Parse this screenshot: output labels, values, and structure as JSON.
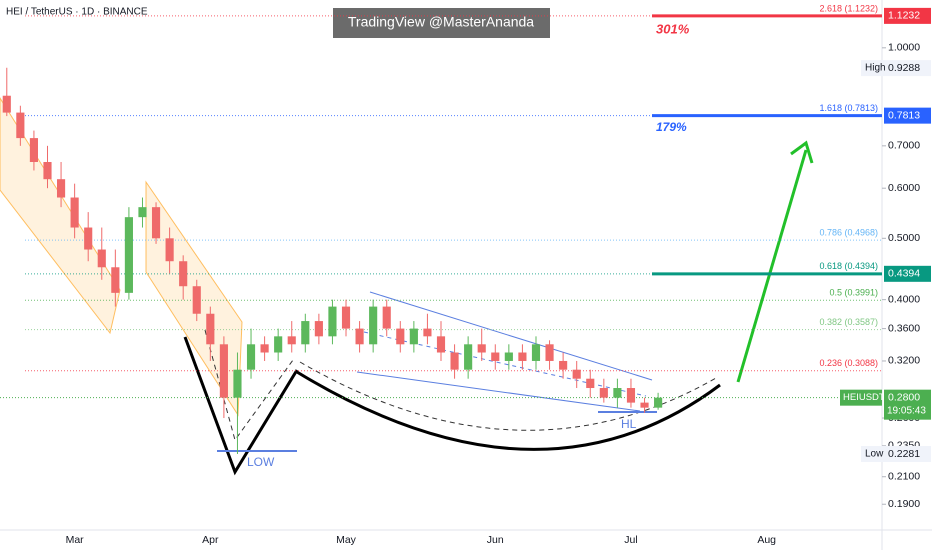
{
  "chart_data": {
    "type": "candlestick",
    "title": "HEI / TetherUS · 1D · BINANCE",
    "watermark": "TradingView @MasterAnanda",
    "log_scale": true,
    "up_color": "#5cb85c",
    "down_color": "#ef6a6a",
    "ylim": [
      0.173,
      1.19
    ],
    "yticks": [
      {
        "value": 1.0,
        "label": "1.0000"
      },
      {
        "value": 0.7,
        "label": "0.7000"
      },
      {
        "value": 0.6,
        "label": "0.6000"
      },
      {
        "value": 0.5,
        "label": "0.5000"
      },
      {
        "value": 0.4,
        "label": "0.4000"
      },
      {
        "value": 0.36,
        "label": "0.3600"
      },
      {
        "value": 0.32,
        "label": "0.3200"
      },
      {
        "value": 0.26,
        "label": "0.2600"
      },
      {
        "value": 0.235,
        "label": "0.2350"
      },
      {
        "value": 0.21,
        "label": "0.2100"
      },
      {
        "value": 0.19,
        "label": "0.1900"
      }
    ],
    "categories": [
      null,
      null,
      null,
      null,
      null,
      "Mar",
      null,
      null,
      null,
      null,
      null,
      null,
      null,
      null,
      null,
      "Apr",
      null,
      null,
      null,
      null,
      null,
      null,
      null,
      null,
      null,
      "May",
      null,
      null,
      null,
      null,
      null,
      null,
      null,
      null,
      null,
      null,
      "Jun",
      null,
      null,
      null,
      null,
      null,
      null,
      null,
      null,
      null,
      "Jul",
      null,
      null,
      null,
      null,
      null,
      null,
      null,
      null,
      null,
      "Aug",
      null,
      null,
      null,
      null,
      null,
      null,
      null,
      null
    ],
    "open": [
      0.84,
      0.79,
      0.72,
      0.66,
      0.62,
      0.58,
      0.52,
      0.48,
      0.45,
      0.41,
      0.54,
      0.56,
      0.5,
      0.46,
      0.42,
      0.38,
      0.34,
      0.28,
      0.31,
      0.34,
      0.33,
      0.35,
      0.34,
      0.37,
      0.35,
      0.39,
      0.36,
      0.34,
      0.39,
      0.36,
      0.34,
      0.36,
      0.35,
      0.33,
      0.31,
      0.34,
      0.33,
      0.32,
      0.33,
      0.32,
      0.34,
      0.32,
      0.31,
      0.3,
      0.29,
      0.28,
      0.29,
      0.275,
      0.27,
      null,
      null,
      null,
      null,
      null,
      null,
      null,
      null,
      null,
      null,
      null,
      null,
      null,
      null,
      null,
      null
    ],
    "high": [
      0.93,
      0.81,
      0.74,
      0.7,
      0.66,
      0.61,
      0.55,
      0.52,
      0.48,
      0.56,
      0.58,
      0.57,
      0.52,
      0.47,
      0.43,
      0.39,
      0.35,
      0.33,
      0.36,
      0.35,
      0.36,
      0.37,
      0.38,
      0.38,
      0.4,
      0.4,
      0.37,
      0.4,
      0.4,
      0.37,
      0.37,
      0.38,
      0.37,
      0.34,
      0.35,
      0.36,
      0.34,
      0.34,
      0.34,
      0.35,
      0.345,
      0.33,
      0.32,
      0.31,
      0.3,
      0.3,
      0.3,
      0.28,
      0.285,
      null,
      null,
      null,
      null,
      null,
      null,
      null,
      null,
      null,
      null,
      null,
      null,
      null,
      null,
      null,
      null
    ],
    "low": [
      0.78,
      0.7,
      0.64,
      0.6,
      0.56,
      0.5,
      0.46,
      0.43,
      0.39,
      0.4,
      0.52,
      0.49,
      0.44,
      0.4,
      0.37,
      0.32,
      0.26,
      0.2281,
      0.3,
      0.32,
      0.32,
      0.33,
      0.33,
      0.34,
      0.34,
      0.35,
      0.33,
      0.33,
      0.35,
      0.33,
      0.33,
      0.34,
      0.32,
      0.3,
      0.3,
      0.32,
      0.31,
      0.31,
      0.31,
      0.31,
      0.31,
      0.3,
      0.29,
      0.28,
      0.275,
      0.27,
      0.27,
      0.265,
      0.268,
      null,
      null,
      null,
      null,
      null,
      null,
      null,
      null,
      null,
      null,
      null,
      null,
      null,
      null,
      null,
      null
    ],
    "close": [
      0.79,
      0.72,
      0.66,
      0.62,
      0.58,
      0.52,
      0.48,
      0.45,
      0.41,
      0.54,
      0.56,
      0.5,
      0.46,
      0.42,
      0.38,
      0.34,
      0.28,
      0.31,
      0.34,
      0.33,
      0.35,
      0.34,
      0.37,
      0.35,
      0.39,
      0.36,
      0.34,
      0.39,
      0.36,
      0.34,
      0.36,
      0.35,
      0.33,
      0.31,
      0.34,
      0.33,
      0.32,
      0.33,
      0.32,
      0.34,
      0.32,
      0.31,
      0.3,
      0.29,
      0.28,
      0.29,
      0.275,
      0.27,
      0.28,
      null,
      null,
      null,
      null,
      null,
      null,
      null,
      null,
      null,
      null,
      null,
      null,
      null,
      null,
      null,
      null
    ],
    "fib_levels": [
      {
        "value": 1.1232,
        "label": "2.618 (1.1232)",
        "color": "#f23645"
      },
      {
        "value": 0.7813,
        "label": "1.618 (0.7813)",
        "color": "#2962ff"
      },
      {
        "value": 0.4968,
        "label": "0.786 (0.4968)",
        "color": "#64b5f6"
      },
      {
        "value": 0.4394,
        "label": "0.618 (0.4394)",
        "color": "#089981"
      },
      {
        "value": 0.3991,
        "label": "0.5 (0.3991)",
        "color": "#4caf50"
      },
      {
        "value": 0.3587,
        "label": "0.382 (0.3587)",
        "color": "#81c784"
      },
      {
        "value": 0.3088,
        "label": "0.236 (0.3088)",
        "color": "#f23645"
      }
    ],
    "price_labels": [
      {
        "value": 1.1232,
        "label": "1.1232",
        "color": "#f23645"
      },
      {
        "value": 0.7813,
        "label": "0.7813",
        "color": "#2962ff"
      },
      {
        "value": 0.4394,
        "label": "0.4394",
        "color": "#089981"
      }
    ],
    "high_mark": {
      "title": "High",
      "value": 0.9288,
      "label": "0.9288"
    },
    "low_mark": {
      "title": "Low",
      "value": 0.2281,
      "label": "0.2281"
    },
    "last_price": {
      "symbol": "HEIUSDT",
      "value": 0.28,
      "label": "0.2800",
      "countdown": "19:05:43",
      "color": "#4caf50"
    },
    "annotations": {
      "target_1": "301%",
      "target_2": "179%",
      "low": "LOW",
      "higher_low": "HL"
    }
  }
}
